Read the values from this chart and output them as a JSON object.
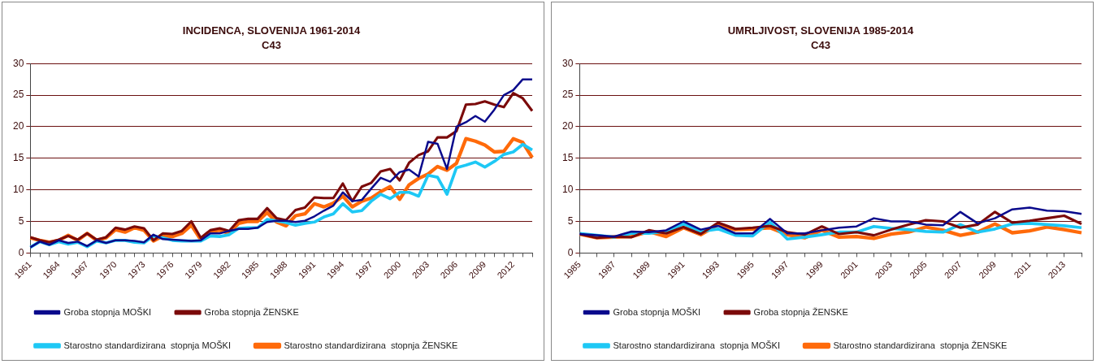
{
  "chart_data": [
    {
      "type": "line",
      "title": "INCIDENCA, SLOVENIJA 1961-2014",
      "subtitle": "C43",
      "categories": [
        "1961",
        null,
        null,
        "1964",
        null,
        null,
        "1967",
        null,
        null,
        "1970",
        null,
        null,
        "1973",
        null,
        null,
        "1976",
        null,
        null,
        "1979",
        null,
        null,
        "1982",
        null,
        null,
        "1985",
        null,
        null,
        "1988",
        null,
        null,
        "1991",
        null,
        null,
        "1994",
        null,
        null,
        "1997",
        null,
        null,
        "2000",
        null,
        null,
        "2003",
        null,
        null,
        "2006",
        null,
        null,
        "2009",
        null,
        null,
        "2012",
        null,
        null
      ],
      "series": [
        {
          "name": "Groba stopnja MOŠKI",
          "color": "#0a0a8c",
          "values": [
            0.9,
            1.8,
            1.3,
            2.0,
            1.6,
            1.8,
            1.1,
            2.0,
            1.6,
            2.0,
            2.0,
            1.9,
            1.7,
            2.9,
            2.2,
            2.1,
            2.0,
            1.9,
            2.0,
            3.1,
            3.1,
            3.5,
            3.8,
            3.8,
            4.0,
            4.9,
            5.1,
            5.1,
            4.9,
            5.1,
            5.8,
            6.7,
            7.5,
            9.6,
            8.2,
            8.4,
            10.2,
            11.9,
            11.3,
            12.8,
            13.2,
            12.1,
            17.6,
            17.3,
            13.3,
            20.0,
            20.7,
            21.7,
            20.8,
            22.7,
            25.0,
            25.8,
            27.5,
            27.5
          ]
        },
        {
          "name": "Groba stopnja ŽENSKE",
          "color": "#7b0a0a",
          "values": [
            2.5,
            2.0,
            1.7,
            2.1,
            2.7,
            2.1,
            3.1,
            2.1,
            2.5,
            4.0,
            3.7,
            4.2,
            3.9,
            2.0,
            3.1,
            3.0,
            3.5,
            5.0,
            2.4,
            3.6,
            3.9,
            3.5,
            5.2,
            5.4,
            5.4,
            7.1,
            5.5,
            5.2,
            6.8,
            7.2,
            8.8,
            8.7,
            8.7,
            11.0,
            8.2,
            10.5,
            11.1,
            12.9,
            13.3,
            11.5,
            14.3,
            15.5,
            16.1,
            18.3,
            18.3,
            19.3,
            23.5,
            23.6,
            24.0,
            23.5,
            23.1,
            25.3,
            24.5,
            22.5
          ]
        },
        {
          "name": "Starostno standardizirana  stopnja MOŠKI",
          "color": "#1ec8f5",
          "values": [
            0.9,
            1.8,
            1.3,
            1.8,
            1.4,
            1.7,
            1.0,
            1.9,
            1.6,
            2.0,
            2.0,
            1.7,
            1.6,
            2.7,
            2.4,
            2.0,
            1.9,
            1.9,
            1.9,
            2.7,
            2.6,
            2.9,
            3.9,
            4.0,
            4.0,
            5.3,
            5.1,
            4.8,
            4.4,
            4.7,
            4.9,
            5.7,
            6.2,
            7.8,
            6.5,
            6.7,
            8.2,
            9.3,
            8.6,
            9.6,
            9.6,
            9.0,
            12.3,
            12.0,
            9.3,
            13.5,
            13.9,
            14.4,
            13.6,
            14.5,
            15.6,
            16.0,
            17.2,
            16.3
          ]
        },
        {
          "name": "Starostno standardizirana  stopnja ŽENSKE",
          "color": "#ff6a0a",
          "values": [
            2.4,
            2.0,
            1.7,
            2.0,
            2.8,
            2.0,
            3.1,
            2.0,
            2.4,
            3.7,
            3.3,
            4.0,
            3.6,
            1.9,
            2.7,
            2.6,
            3.1,
            4.4,
            2.1,
            3.4,
            3.6,
            3.1,
            4.7,
            5.0,
            5.0,
            6.4,
            4.9,
            4.3,
            5.9,
            6.2,
            7.8,
            7.3,
            7.9,
            9.0,
            7.3,
            8.2,
            8.7,
            9.7,
            10.5,
            8.5,
            10.8,
            11.8,
            12.5,
            13.7,
            13.1,
            14.2,
            18.1,
            17.7,
            17.1,
            16.0,
            16.1,
            18.1,
            17.5,
            15.1
          ]
        }
      ],
      "ylim": [
        0,
        30
      ],
      "yticks": [
        0,
        5,
        10,
        15,
        20,
        25,
        30
      ],
      "grid": "y",
      "legend": "bottom",
      "marker": "none",
      "line_style": "solid"
    },
    {
      "type": "line",
      "title": "UMRLJIVOST, SLOVENIJA 1985-2014",
      "subtitle": "C43",
      "categories": [
        "1985",
        null,
        "1987",
        null,
        "1989",
        null,
        "1991",
        null,
        "1993",
        null,
        "1995",
        null,
        "1997",
        null,
        "1999",
        null,
        "2001",
        null,
        "2003",
        null,
        "2005",
        null,
        "2007",
        null,
        "2009",
        null,
        "2011",
        null,
        "2013",
        null
      ],
      "series": [
        {
          "name": "Groba stopnja MOŠKI",
          "color": "#0a0a8c",
          "values": [
            3.0,
            2.8,
            2.6,
            3.4,
            3.3,
            3.6,
            5.0,
            3.7,
            4.3,
            3.1,
            3.1,
            5.4,
            3.1,
            3.1,
            3.6,
            4.0,
            4.2,
            5.5,
            5.0,
            5.0,
            4.5,
            4.4,
            6.5,
            4.7,
            5.5,
            6.9,
            7.2,
            6.7,
            6.6,
            6.2
          ]
        },
        {
          "name": "Groba stopnja ŽENSKE",
          "color": "#7b0a0a",
          "values": [
            3.0,
            2.4,
            2.6,
            2.5,
            3.6,
            3.1,
            4.1,
            3.0,
            4.8,
            3.8,
            4.0,
            4.3,
            3.3,
            2.9,
            4.2,
            3.0,
            3.3,
            2.8,
            3.7,
            4.5,
            5.2,
            5.0,
            4.0,
            4.5,
            6.5,
            4.8,
            5.1,
            5.5,
            5.9,
            4.6
          ]
        },
        {
          "name": "Starostno standardizirana  stopnja MOŠKI",
          "color": "#1ec8f5",
          "values": [
            3.1,
            2.8,
            2.5,
            3.1,
            3.1,
            3.4,
            4.6,
            3.4,
            3.8,
            2.8,
            2.7,
            4.9,
            2.2,
            2.5,
            2.9,
            3.3,
            3.3,
            4.2,
            3.9,
            3.7,
            3.4,
            3.3,
            4.5,
            3.3,
            3.8,
            4.6,
            4.7,
            4.5,
            4.3,
            4.0
          ]
        },
        {
          "name": "Starostno standardizirana  stopnja ŽENSKE",
          "color": "#ff6a0a",
          "values": [
            3.0,
            2.4,
            2.5,
            2.6,
            3.4,
            2.6,
            4.0,
            2.9,
            4.5,
            3.7,
            3.8,
            4.0,
            2.9,
            2.4,
            3.6,
            2.5,
            2.6,
            2.3,
            3.0,
            3.3,
            4.1,
            3.6,
            2.8,
            3.3,
            4.6,
            3.2,
            3.5,
            4.1,
            3.7,
            3.2
          ]
        }
      ],
      "ylim": [
        0,
        30
      ],
      "yticks": [
        0,
        5,
        10,
        15,
        20,
        25,
        30
      ],
      "grid": "y",
      "legend": "bottom",
      "marker": "none",
      "line_style": "solid"
    }
  ]
}
